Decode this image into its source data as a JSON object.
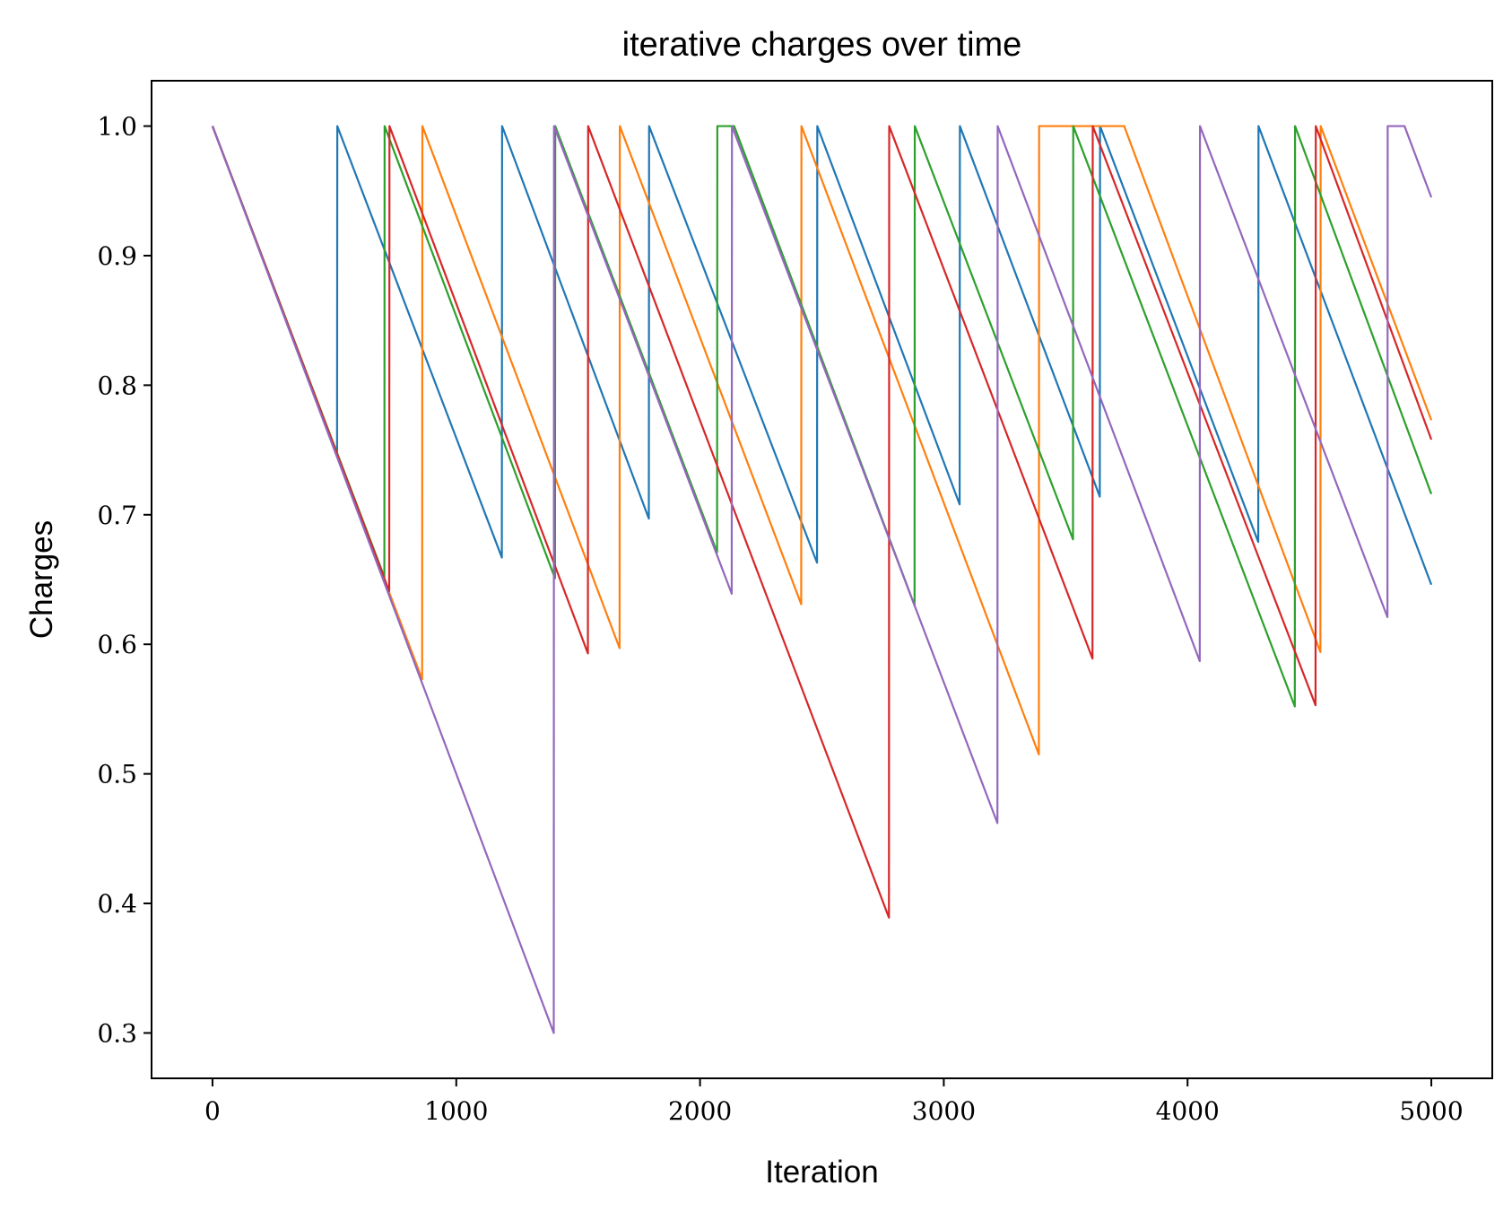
{
  "chart_data": {
    "type": "line",
    "title": "iterative charges over time",
    "xlabel": "Iteration",
    "ylabel": "Charges",
    "xlim": [
      -250,
      5250
    ],
    "ylim": [
      0.265,
      1.035
    ],
    "xticks": [
      0,
      1000,
      2000,
      3000,
      4000,
      5000
    ],
    "yticks": [
      0.3,
      0.4,
      0.5,
      0.6,
      0.7,
      0.8,
      0.9,
      1.0
    ],
    "xtick_labels": [
      "0",
      "1000",
      "2000",
      "3000",
      "4000",
      "5000"
    ],
    "ytick_labels": [
      "0.3",
      "0.4",
      "0.5",
      "0.6",
      "0.7",
      "0.8",
      "0.9",
      "1.0"
    ],
    "grid": false,
    "legend": "none",
    "series": [
      {
        "color": "#1f77b4",
        "x": [
          0,
          511,
          512,
          1187,
          1188,
          1790,
          1791,
          2480,
          2481,
          3065,
          3066,
          3640,
          3641,
          4290,
          4291,
          5000
        ],
        "y": [
          1.0,
          0.746,
          1.0,
          0.667,
          1.0,
          0.697,
          1.0,
          0.663,
          1.0,
          0.708,
          1.0,
          0.714,
          1.0,
          0.679,
          1.0,
          0.646
        ]
      },
      {
        "color": "#ff7f0e",
        "x": [
          0,
          860,
          861,
          1670,
          1671,
          2415,
          2416,
          3390,
          3391,
          3740,
          4545,
          4546,
          5000
        ],
        "y": [
          1.0,
          0.573,
          1.0,
          0.597,
          1.0,
          0.631,
          1.0,
          0.515,
          1.0,
          1.0,
          0.594,
          1.0,
          0.773
        ]
      },
      {
        "color": "#2ca02c",
        "x": [
          0,
          705,
          706,
          1405,
          1406,
          2070,
          2071,
          2140,
          2880,
          2881,
          3530,
          3531,
          4440,
          4441,
          5000
        ],
        "y": [
          1.0,
          0.652,
          1.0,
          0.651,
          1.0,
          0.671,
          1.0,
          1.0,
          0.63,
          1.0,
          0.681,
          1.0,
          0.552,
          1.0,
          0.716
        ]
      },
      {
        "color": "#d62728",
        "x": [
          0,
          725,
          726,
          1540,
          1541,
          2775,
          2776,
          3610,
          3611,
          4525,
          4526,
          5000
        ],
        "y": [
          1.0,
          0.641,
          1.0,
          0.593,
          1.0,
          0.389,
          1.0,
          0.589,
          1.0,
          0.553,
          1.0,
          0.758
        ]
      },
      {
        "color": "#9467bd",
        "x": [
          0,
          1400,
          1401,
          2130,
          2131,
          3220,
          3221,
          4050,
          4051,
          4820,
          4821,
          4890,
          5000
        ],
        "y": [
          1.0,
          0.3,
          1.0,
          0.639,
          1.0,
          0.462,
          1.0,
          0.587,
          1.0,
          0.621,
          1.0,
          1.0,
          0.945
        ]
      }
    ]
  }
}
